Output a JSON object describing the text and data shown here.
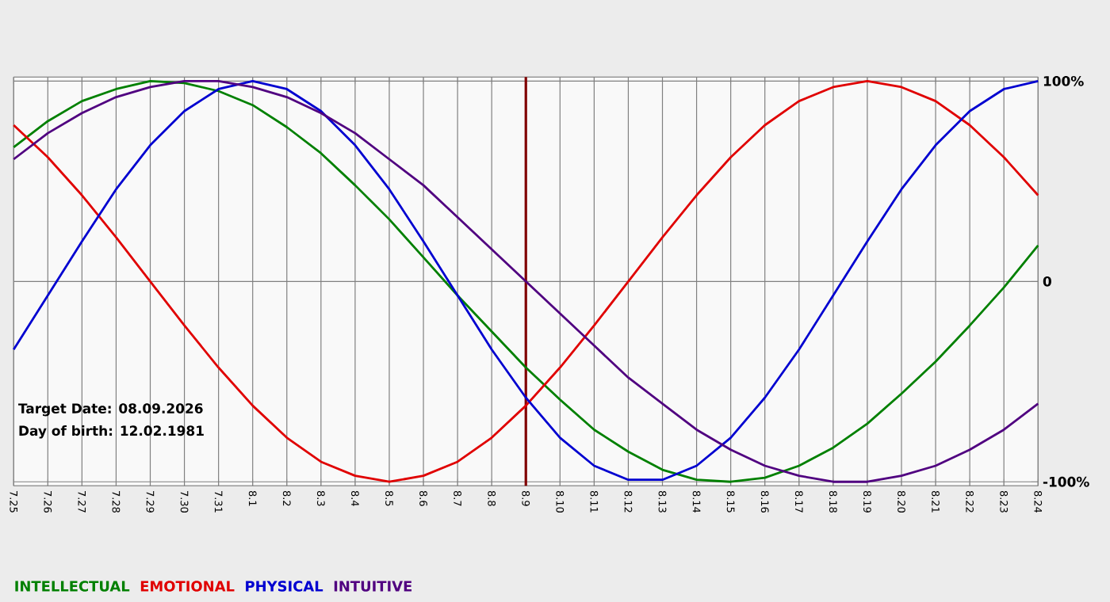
{
  "chart_data": {
    "type": "line",
    "categories": [
      "7.25",
      "7.26",
      "7.27",
      "7.28",
      "7.29",
      "7.30",
      "7.31",
      "8.1",
      "8.2",
      "8.3",
      "8.4",
      "8.5",
      "8.6",
      "8.7",
      "8.8",
      "8.9",
      "8.10",
      "8.11",
      "8.12",
      "8.13",
      "8.14",
      "8.15",
      "8.16",
      "8.17",
      "8.18",
      "8.19",
      "8.20",
      "8.21",
      "8.22",
      "8.23",
      "8.24"
    ],
    "series": [
      {
        "name": "INTELLECTUAL",
        "color": "#008000",
        "values": [
          67,
          80,
          90,
          96,
          100,
          99,
          95,
          88,
          77,
          64,
          48,
          31,
          12,
          -7,
          -25,
          -43,
          -59,
          -74,
          -85,
          -94,
          -99,
          -100,
          -98,
          -92,
          -83,
          -71,
          -56,
          -40,
          -22,
          -3,
          18
        ]
      },
      {
        "name": "EMOTIONAL",
        "color": "#e00000",
        "values": [
          78,
          62,
          43,
          22,
          0,
          -22,
          -43,
          -62,
          -78,
          -90,
          -97,
          -100,
          -97,
          -90,
          -78,
          -62,
          -43,
          -22,
          0,
          22,
          43,
          62,
          78,
          90,
          97,
          100,
          97,
          90,
          78,
          62,
          43
        ]
      },
      {
        "name": "PHYSICAL",
        "color": "#0000d0",
        "values": [
          -34,
          -7,
          20,
          46,
          68,
          85,
          96,
          100,
          96,
          85,
          68,
          46,
          20,
          -7,
          -34,
          -58,
          -78,
          -92,
          -99,
          -99,
          -92,
          -78,
          -58,
          -34,
          -7,
          20,
          46,
          68,
          85,
          96,
          100
        ]
      },
      {
        "name": "INTUITIVE",
        "color": "#500080",
        "values": [
          61,
          74,
          84,
          92,
          97,
          100,
          100,
          97,
          92,
          84,
          74,
          61,
          48,
          32,
          16,
          0,
          -16,
          -32,
          -48,
          -61,
          -74,
          -84,
          -92,
          -97,
          -100,
          -100,
          -97,
          -92,
          -84,
          -74,
          -61
        ]
      }
    ],
    "ylim": [
      -102,
      102
    ],
    "yticks": [
      {
        "value": 100,
        "label": "100%"
      },
      0,
      {
        "value": -100,
        "label": "-100%"
      }
    ],
    "grid": true,
    "legend": "bottom left",
    "ref_lines": [
      {
        "axis": "x",
        "value": "8.9",
        "color": "#800000"
      }
    ],
    "annotations": [
      "Target Date: 08.09.2026",
      "Day of birth: 12.02.1981"
    ]
  }
}
